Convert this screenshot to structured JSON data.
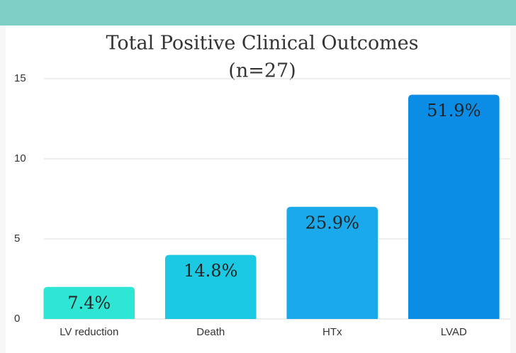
{
  "chart_data": {
    "type": "bar",
    "title": "Total Positive Clinical Outcomes",
    "subtitle": "(n=27)",
    "categories": [
      "LV reduction",
      "Death",
      "HTx",
      "LVAD"
    ],
    "values": [
      2,
      4,
      7,
      14
    ],
    "value_labels": [
      "7.4%",
      "14.8%",
      "25.9%",
      "51.9%"
    ],
    "colors": [
      "#2ee6d3",
      "#1cc9e2",
      "#1aa9ea",
      "#0b8de6"
    ],
    "ylim": [
      0,
      15
    ],
    "yticks": [
      0,
      5,
      10,
      15
    ],
    "grid": true
  }
}
